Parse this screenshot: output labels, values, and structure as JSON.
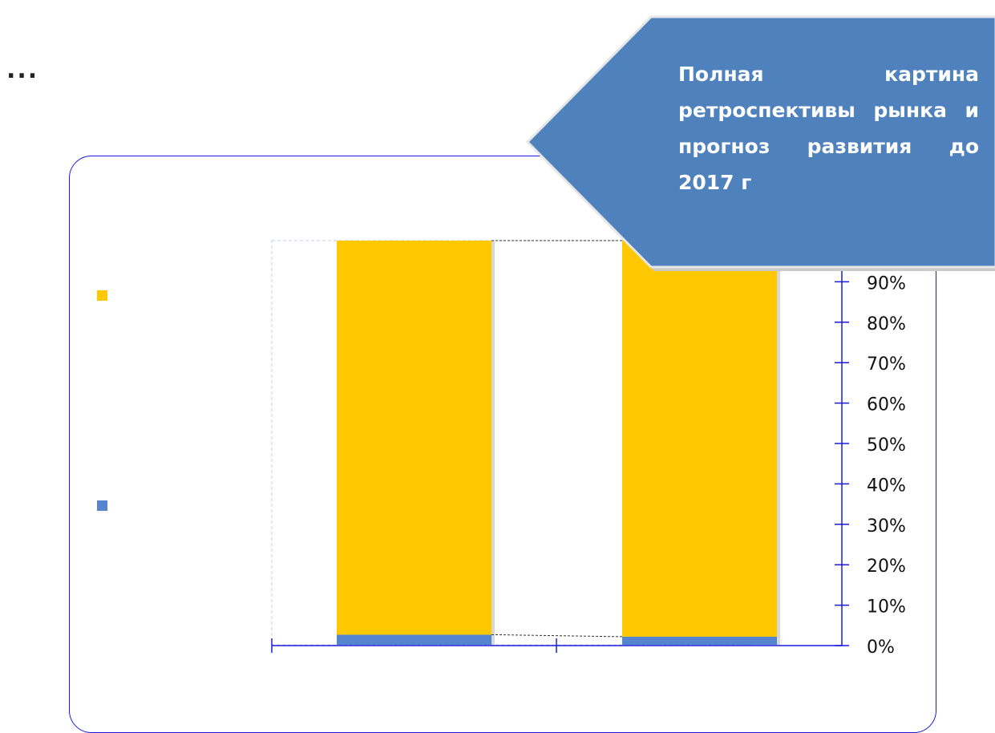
{
  "header": {
    "ellipsis": "..."
  },
  "callout": {
    "text": "Полная картина ретроспективы рынка и прогноз развития до 2017 г",
    "fill": "#4f81bd"
  },
  "legend": [
    {
      "color": "#ffc800",
      "label": ""
    },
    {
      "color": "#5585cf",
      "label": ""
    }
  ],
  "chart_data": {
    "type": "bar",
    "stacked": true,
    "categories": [
      "",
      ""
    ],
    "series": [
      {
        "color": "#5585cf",
        "values": [
          2.5,
          2
        ]
      },
      {
        "color": "#ffc800",
        "values": [
          97.5,
          98
        ]
      }
    ],
    "y_ticks": [
      "0%",
      "10%",
      "20%",
      "30%",
      "40%",
      "50%",
      "60%",
      "70%",
      "80%",
      "90%"
    ],
    "ylim": [
      0,
      100
    ],
    "y_axis_position": "right",
    "grid": false,
    "axis_color": "#1a1adc"
  }
}
